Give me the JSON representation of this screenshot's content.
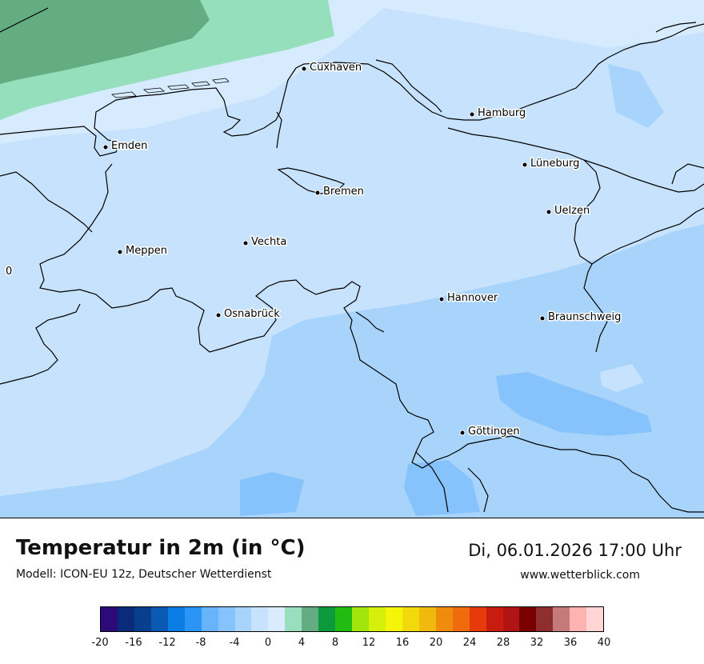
{
  "map": {
    "cities": [
      {
        "name": "Cuxhaven"
      },
      {
        "name": "Hamburg"
      },
      {
        "name": "Emden"
      },
      {
        "name": "Lüneburg"
      },
      {
        "name": "Bremen"
      },
      {
        "name": "Uelzen"
      },
      {
        "name": "Vechta"
      },
      {
        "name": "Meppen"
      },
      {
        "name": "Hannover"
      },
      {
        "name": "Osnabrück"
      },
      {
        "name": "Braunschweig"
      },
      {
        "name": "Göttingen"
      }
    ],
    "isotherm_label": "0"
  },
  "footer": {
    "title": "Temperatur in 2m (in °C)",
    "model": "Modell: ICON-EU 12z, Deutscher Wetterdienst",
    "datetime": "Di, 06.01.2026 17:00 Uhr",
    "website": "www.wetterblick.com"
  },
  "legend": {
    "colors": [
      "#2c0a7a",
      "#0a2a7a",
      "#083f8c",
      "#0a5ab4",
      "#0b7ee6",
      "#2a95f5",
      "#68b4fb",
      "#86c2fb",
      "#a7d3fc",
      "#c6e2fd",
      "#d9ecfe",
      "#98dfbd",
      "#64ad82",
      "#0b9a3c",
      "#22bb12",
      "#a2e50b",
      "#d4f00b",
      "#f5f50a",
      "#f2d90b",
      "#f1b90b",
      "#f08c0b",
      "#ef6b0b",
      "#e63a0b",
      "#c81c10",
      "#b01415",
      "#7a0000",
      "#8f2e2e",
      "#c47a78",
      "#ffb3b0",
      "#ffd6d4"
    ],
    "ticks": [
      "-20",
      "-16",
      "-12",
      "-8",
      "-4",
      "0",
      "4",
      "8",
      "12",
      "16",
      "20",
      "24",
      "28",
      "32",
      "36",
      "40"
    ]
  }
}
